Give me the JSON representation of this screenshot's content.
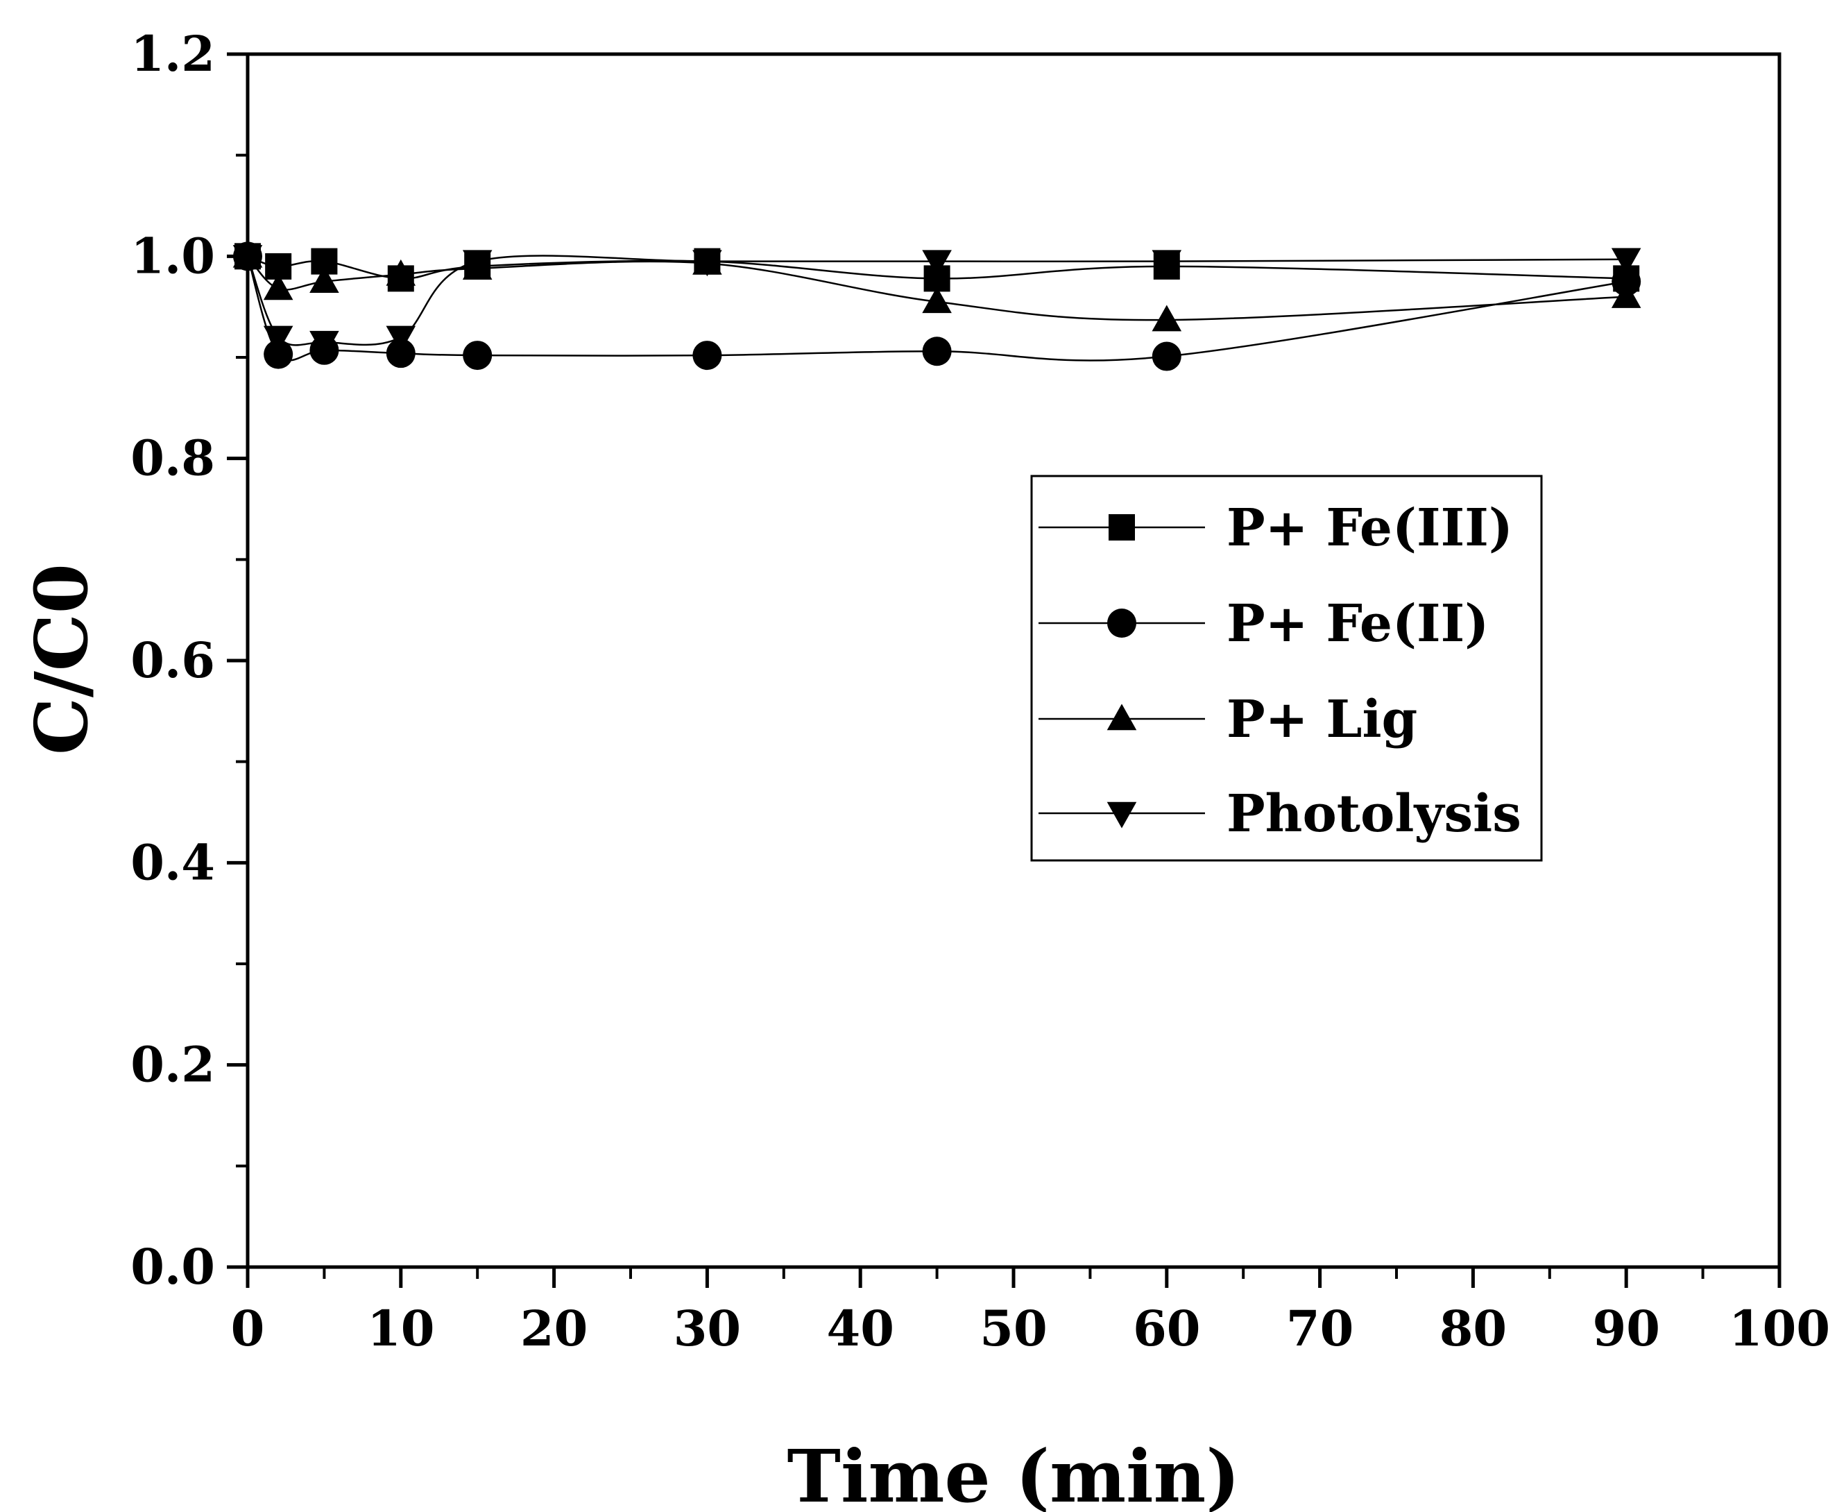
{
  "chart_data": {
    "type": "line",
    "title": "",
    "xlabel": "Time (min)",
    "ylabel": "C/C0",
    "xlim": [
      0,
      100
    ],
    "ylim": [
      0.0,
      1.2
    ],
    "xticks": [
      0,
      10,
      20,
      30,
      40,
      50,
      60,
      70,
      80,
      90,
      100
    ],
    "xtick_labels": [
      "0",
      "10",
      "20",
      "30",
      "40",
      "50",
      "60",
      "70",
      "80",
      "90",
      "100"
    ],
    "yticks": [
      0.0,
      0.2,
      0.4,
      0.6,
      0.8,
      1.0,
      1.2
    ],
    "ytick_labels": [
      "0.0",
      "0.2",
      "0.4",
      "0.6",
      "0.8",
      "1.0",
      "1.2"
    ],
    "grid": false,
    "legend_position": "right-middle",
    "line_color": "#000000",
    "series": [
      {
        "name": "P+ Fe(III)",
        "marker": "square",
        "x": [
          0,
          2,
          5,
          10,
          15,
          30,
          45,
          60,
          90
        ],
        "y": [
          1.0,
          0.99,
          0.995,
          0.978,
          0.99,
          0.995,
          0.978,
          0.99,
          0.978
        ]
      },
      {
        "name": "P+ Fe(II)",
        "marker": "circle",
        "x": [
          0,
          2,
          5,
          10,
          15,
          30,
          45,
          60,
          90
        ],
        "y": [
          1.0,
          0.903,
          0.907,
          0.904,
          0.902,
          0.902,
          0.906,
          0.901,
          0.975
        ]
      },
      {
        "name": "P+ Lig",
        "marker": "triangle-up",
        "x": [
          0,
          2,
          5,
          10,
          15,
          30,
          45,
          60,
          90
        ],
        "y": [
          1.0,
          0.968,
          0.975,
          0.982,
          0.988,
          0.993,
          0.955,
          0.937,
          0.96
        ]
      },
      {
        "name": "Photolysis",
        "marker": "triangle-down",
        "x": [
          0,
          2,
          5,
          10,
          15,
          30,
          45,
          60,
          90
        ],
        "y": [
          1.0,
          0.92,
          0.915,
          0.92,
          0.995,
          0.995,
          0.995,
          0.995,
          0.997
        ]
      }
    ]
  }
}
